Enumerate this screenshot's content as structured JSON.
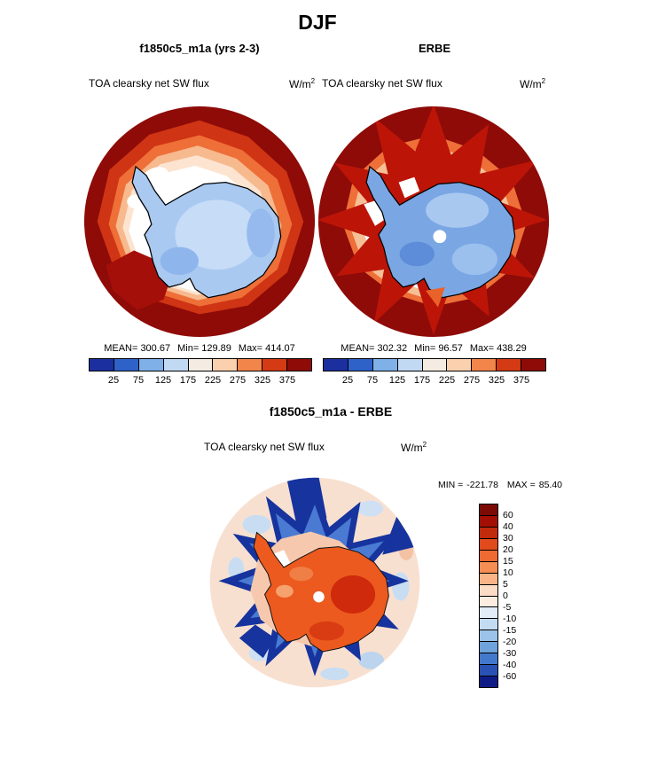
{
  "title": "DJF",
  "model_panel": {
    "title": "f1850c5_m1a (yrs 2-3)",
    "field_label": "TOA clearsky net SW flux",
    "units": "W/m",
    "units_exp": "2",
    "stats": {
      "mean_label": "MEAN=",
      "mean": "300.67",
      "min_label": "Min=",
      "min": "129.89",
      "max_label": "Max=",
      "max": "414.07"
    }
  },
  "obs_panel": {
    "title": "ERBE",
    "field_label": "TOA clearsky net SW flux",
    "units": "W/m",
    "units_exp": "2",
    "stats": {
      "mean_label": "MEAN=",
      "mean": "302.32",
      "min_label": "Min=",
      "min": "96.57",
      "max_label": "Max=",
      "max": "438.29"
    }
  },
  "colorbar": {
    "ticks": [
      "25",
      "75",
      "125",
      "175",
      "225",
      "275",
      "325",
      "375"
    ],
    "colors": [
      "#1c2f9e",
      "#2f62c8",
      "#7fb0e8",
      "#c2d9f3",
      "#f4ece2",
      "#fbd0ae",
      "#f2854a",
      "#d43b14",
      "#8e0b08"
    ]
  },
  "diff_panel": {
    "title": "f1850c5_m1a - ERBE",
    "field_label": "TOA clearsky net SW flux",
    "units": "W/m",
    "units_exp": "2",
    "min_label": "MIN =",
    "min": "-221.78",
    "max_label": "MAX =",
    "max": "85.40"
  },
  "diff_colorbar": {
    "labels": [
      "60",
      "40",
      "30",
      "20",
      "15",
      "10",
      "5",
      "0",
      "-5",
      "-10",
      "-15",
      "-20",
      "-30",
      "-40",
      "-60"
    ],
    "colors": [
      "#7c0a05",
      "#a30f05",
      "#c22a0c",
      "#e04a1c",
      "#ee6a33",
      "#f68d55",
      "#fbb488",
      "#fddcc6",
      "#fdece0",
      "#e2ecf8",
      "#c3dcf2",
      "#9cc4e8",
      "#6fa3dc",
      "#4478cc",
      "#2a52b4",
      "#101c86"
    ]
  },
  "chart_data": [
    {
      "type": "heatmap",
      "subtype": "south-polar-stereographic-contour-map",
      "panel": "model",
      "title": "f1850c5_m1a (yrs 2-3)",
      "variable": "TOA clearsky net SW flux",
      "units": "W/m^2",
      "season": "DJF",
      "region": "Antarctica / Southern Hemisphere polar cap",
      "stats": {
        "mean": 300.67,
        "min": 129.89,
        "max": 414.07
      },
      "contour_levels": [
        25,
        75,
        125,
        175,
        225,
        275,
        325,
        375
      ],
      "palette": [
        "#1c2f9e",
        "#2f62c8",
        "#7fb0e8",
        "#c2d9f3",
        "#f4ece2",
        "#fbd0ae",
        "#f2854a",
        "#d43b14",
        "#8e0b08"
      ],
      "legend_position": "bottom"
    },
    {
      "type": "heatmap",
      "subtype": "south-polar-stereographic-contour-map",
      "panel": "observations",
      "title": "ERBE",
      "variable": "TOA clearsky net SW flux",
      "units": "W/m^2",
      "season": "DJF",
      "region": "Antarctica / Southern Hemisphere polar cap",
      "stats": {
        "mean": 302.32,
        "min": 96.57,
        "max": 438.29
      },
      "contour_levels": [
        25,
        75,
        125,
        175,
        225,
        275,
        325,
        375
      ],
      "palette": [
        "#1c2f9e",
        "#2f62c8",
        "#7fb0e8",
        "#c2d9f3",
        "#f4ece2",
        "#fbd0ae",
        "#f2854a",
        "#d43b14",
        "#8e0b08"
      ],
      "legend_position": "bottom"
    },
    {
      "type": "heatmap",
      "subtype": "south-polar-stereographic-contour-map",
      "panel": "difference",
      "title": "f1850c5_m1a - ERBE",
      "variable": "TOA clearsky net SW flux",
      "units": "W/m^2",
      "season": "DJF",
      "region": "Antarctica / Southern Hemisphere polar cap",
      "stats": {
        "min": -221.78,
        "max": 85.4
      },
      "contour_levels": [
        60,
        40,
        30,
        20,
        15,
        10,
        5,
        0,
        -5,
        -10,
        -15,
        -20,
        -30,
        -40,
        -60
      ],
      "palette": [
        "#7c0a05",
        "#a30f05",
        "#c22a0c",
        "#e04a1c",
        "#ee6a33",
        "#f68d55",
        "#fbb488",
        "#fddcc6",
        "#fdece0",
        "#e2ecf8",
        "#c3dcf2",
        "#9cc4e8",
        "#6fa3dc",
        "#4478cc",
        "#2a52b4",
        "#101c86"
      ],
      "legend_position": "right"
    }
  ]
}
